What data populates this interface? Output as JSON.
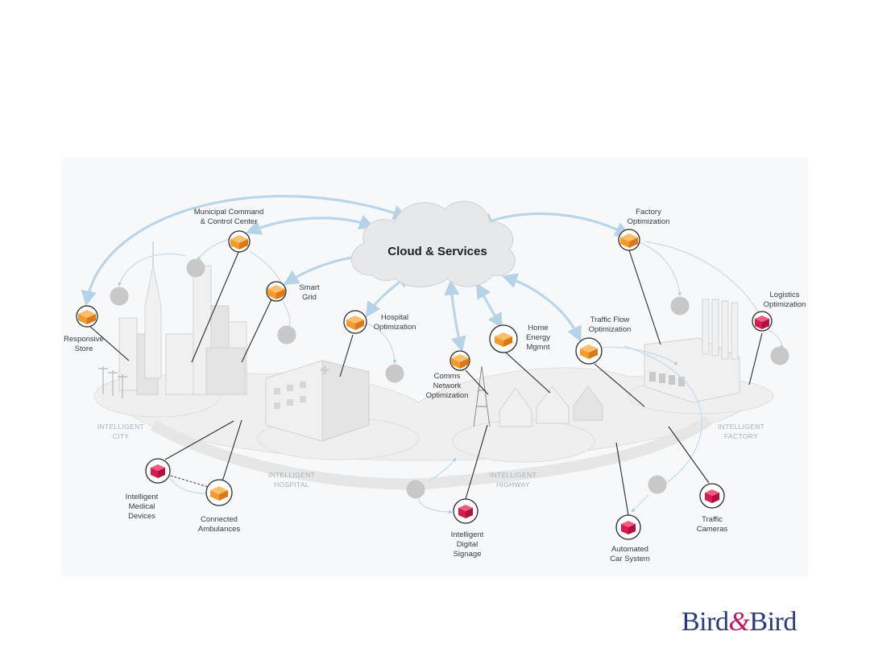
{
  "cloud": {
    "label": "Cloud & Services"
  },
  "nodes": {
    "municipal": [
      "Municipal Command",
      "& Control Center"
    ],
    "smart_grid": [
      "Smart",
      "Grid"
    ],
    "responsive_store": [
      "Responsive",
      "Store"
    ],
    "hospital_opt": [
      "Hospital",
      "Optimization"
    ],
    "comms": [
      "Comms",
      "Network",
      "Optimization"
    ],
    "home_energy": [
      "Home",
      "Energy",
      "Mgmnt"
    ],
    "traffic_flow": [
      "Traffic Flow",
      "Optimization"
    ],
    "factory_opt": [
      "Factory",
      "Optimization"
    ],
    "logistics": [
      "Logistics",
      "Optimization"
    ],
    "medical_devices": [
      "Intelligent",
      "Medical",
      "Devices"
    ],
    "ambulances": [
      "Connected",
      "Ambulances"
    ],
    "digital_signage": [
      "Intelligent",
      "Digital",
      "Signage"
    ],
    "car_system": [
      "Automated",
      "Car System"
    ],
    "traffic_cameras": [
      "Traffic",
      "Cameras"
    ]
  },
  "zones": {
    "city": [
      "INTELLIGENT",
      "CITY"
    ],
    "hospital": [
      "INTELLIGENT",
      "HOSPITAL"
    ],
    "highway": [
      "INTELLIGENT",
      "HIGHWAY"
    ],
    "factory": [
      "INTELLIGENT",
      "FACTORY"
    ]
  },
  "colors": {
    "orange": "#f39a2c",
    "crimson": "#d81b4f",
    "arrow": "#b9d6e8",
    "logo_blue": "#2b3a7a",
    "logo_amp": "#c2185b"
  },
  "logo": {
    "part1": "Bird",
    "amp": "&",
    "part2": "Bird"
  }
}
